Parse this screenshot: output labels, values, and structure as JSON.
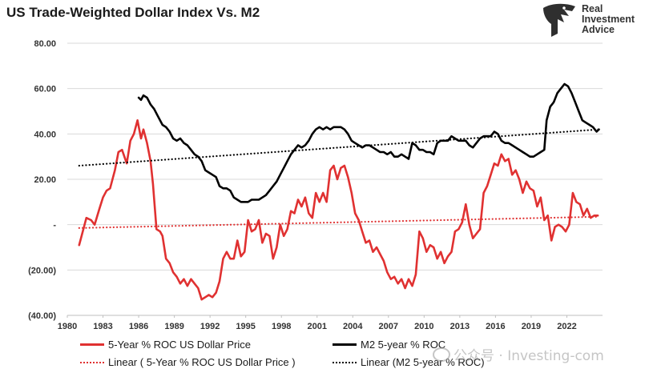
{
  "title": "US Trade-Weighted Dollar Index Vs. M2",
  "logo": {
    "lines": [
      "Real",
      "Investment",
      "Advice"
    ],
    "icon": "eagle-head-icon"
  },
  "watermark": {
    "text": "公众号 · Investing-com",
    "icon": "wechat-icon"
  },
  "colors": {
    "dollar": "#e03131",
    "m2": "#000000",
    "grid": "#d9d9d9"
  },
  "chart_data": {
    "type": "line",
    "title": "US Trade-Weighted Dollar Index Vs. M2",
    "xlim": [
      1980,
      2025
    ],
    "ylim": [
      -40,
      80
    ],
    "grid": "horizontal",
    "legend_position": "bottom",
    "x_ticks": [
      1980,
      1983,
      1986,
      1989,
      1992,
      1995,
      1998,
      2001,
      2004,
      2007,
      2010,
      2013,
      2016,
      2019,
      2022
    ],
    "y_ticks": [
      {
        "value": 80,
        "label": "80.00"
      },
      {
        "value": 60,
        "label": "60.00"
      },
      {
        "value": 40,
        "label": "40.00"
      },
      {
        "value": 20,
        "label": "20.00"
      },
      {
        "value": 0,
        "label": "-"
      },
      {
        "value": -20,
        "label": "(20.00)"
      },
      {
        "value": -40,
        "label": "(40.00)"
      }
    ],
    "series": [
      {
        "name": "5-Year % ROC US Dollar Price",
        "color": "#e03131",
        "style": "solid",
        "points": [
          [
            1981.0,
            -9
          ],
          [
            1981.3,
            -3
          ],
          [
            1981.6,
            3
          ],
          [
            1982.0,
            2
          ],
          [
            1982.3,
            0
          ],
          [
            1982.7,
            7
          ],
          [
            1983.0,
            12
          ],
          [
            1983.3,
            15
          ],
          [
            1983.6,
            16
          ],
          [
            1984.0,
            24
          ],
          [
            1984.3,
            32
          ],
          [
            1984.6,
            33
          ],
          [
            1985.0,
            27
          ],
          [
            1985.3,
            37
          ],
          [
            1985.6,
            40
          ],
          [
            1985.9,
            46
          ],
          [
            1986.2,
            38
          ],
          [
            1986.4,
            42
          ],
          [
            1986.7,
            36
          ],
          [
            1987.0,
            28
          ],
          [
            1987.2,
            18
          ],
          [
            1987.5,
            -2
          ],
          [
            1987.8,
            -3
          ],
          [
            1988.0,
            -5
          ],
          [
            1988.3,
            -15
          ],
          [
            1988.6,
            -17
          ],
          [
            1988.9,
            -21
          ],
          [
            1989.2,
            -23
          ],
          [
            1989.5,
            -26
          ],
          [
            1989.8,
            -24
          ],
          [
            1990.1,
            -27
          ],
          [
            1990.4,
            -24
          ],
          [
            1990.7,
            -26
          ],
          [
            1991.0,
            -28
          ],
          [
            1991.3,
            -33
          ],
          [
            1991.6,
            -32
          ],
          [
            1991.9,
            -31
          ],
          [
            1992.2,
            -32
          ],
          [
            1992.5,
            -30
          ],
          [
            1992.8,
            -25
          ],
          [
            1993.1,
            -15
          ],
          [
            1993.4,
            -12
          ],
          [
            1993.7,
            -15
          ],
          [
            1994.0,
            -15
          ],
          [
            1994.3,
            -7
          ],
          [
            1994.6,
            -14
          ],
          [
            1994.9,
            -12
          ],
          [
            1995.2,
            2
          ],
          [
            1995.5,
            -3
          ],
          [
            1995.8,
            -2
          ],
          [
            1996.1,
            2
          ],
          [
            1996.4,
            -8
          ],
          [
            1996.7,
            -4
          ],
          [
            1997.0,
            -5
          ],
          [
            1997.3,
            -15
          ],
          [
            1997.6,
            -10
          ],
          [
            1997.9,
            0
          ],
          [
            1998.2,
            -5
          ],
          [
            1998.5,
            -2
          ],
          [
            1998.8,
            6
          ],
          [
            1999.1,
            5
          ],
          [
            1999.4,
            11
          ],
          [
            1999.7,
            8
          ],
          [
            2000.0,
            12
          ],
          [
            2000.3,
            5
          ],
          [
            2000.6,
            3
          ],
          [
            2000.9,
            14
          ],
          [
            2001.2,
            10
          ],
          [
            2001.5,
            14
          ],
          [
            2001.8,
            10
          ],
          [
            2002.1,
            24
          ],
          [
            2002.4,
            26
          ],
          [
            2002.7,
            20
          ],
          [
            2003.0,
            25
          ],
          [
            2003.3,
            26
          ],
          [
            2003.6,
            21
          ],
          [
            2003.9,
            14
          ],
          [
            2004.2,
            5
          ],
          [
            2004.5,
            2
          ],
          [
            2004.8,
            -3
          ],
          [
            2005.1,
            -8
          ],
          [
            2005.4,
            -7
          ],
          [
            2005.7,
            -12
          ],
          [
            2006.0,
            -10
          ],
          [
            2006.3,
            -13
          ],
          [
            2006.6,
            -16
          ],
          [
            2006.9,
            -21
          ],
          [
            2007.2,
            -24
          ],
          [
            2007.5,
            -23
          ],
          [
            2007.8,
            -26
          ],
          [
            2008.1,
            -24
          ],
          [
            2008.4,
            -28
          ],
          [
            2008.7,
            -24
          ],
          [
            2009.0,
            -27
          ],
          [
            2009.3,
            -22
          ],
          [
            2009.6,
            -3
          ],
          [
            2009.9,
            -6
          ],
          [
            2010.2,
            -12
          ],
          [
            2010.5,
            -9
          ],
          [
            2010.8,
            -10
          ],
          [
            2011.1,
            -15
          ],
          [
            2011.4,
            -12
          ],
          [
            2011.7,
            -17
          ],
          [
            2012.0,
            -14
          ],
          [
            2012.3,
            -12
          ],
          [
            2012.6,
            -3
          ],
          [
            2012.9,
            -2
          ],
          [
            2013.2,
            1
          ],
          [
            2013.5,
            9
          ],
          [
            2013.8,
            0
          ],
          [
            2014.1,
            -6
          ],
          [
            2014.4,
            -4
          ],
          [
            2014.7,
            -2
          ],
          [
            2015.0,
            14
          ],
          [
            2015.3,
            17
          ],
          [
            2015.6,
            22
          ],
          [
            2015.9,
            27
          ],
          [
            2016.2,
            26
          ],
          [
            2016.5,
            31
          ],
          [
            2016.8,
            28
          ],
          [
            2017.1,
            29
          ],
          [
            2017.4,
            22
          ],
          [
            2017.7,
            24
          ],
          [
            2018.0,
            20
          ],
          [
            2018.3,
            14
          ],
          [
            2018.6,
            19
          ],
          [
            2018.9,
            16
          ],
          [
            2019.2,
            15
          ],
          [
            2019.5,
            8
          ],
          [
            2019.8,
            12
          ],
          [
            2020.1,
            2
          ],
          [
            2020.4,
            4
          ],
          [
            2020.7,
            -7
          ],
          [
            2021.0,
            -1
          ],
          [
            2021.3,
            0
          ],
          [
            2021.6,
            -1
          ],
          [
            2021.9,
            -3
          ],
          [
            2022.2,
            0
          ],
          [
            2022.5,
            14
          ],
          [
            2022.8,
            10
          ],
          [
            2023.1,
            9
          ],
          [
            2023.4,
            4
          ],
          [
            2023.7,
            7
          ],
          [
            2024.0,
            3
          ],
          [
            2024.3,
            4
          ],
          [
            2024.6,
            4
          ]
        ]
      },
      {
        "name": "M2 5-year % ROC",
        "color": "#000000",
        "style": "solid",
        "points": [
          [
            1986.0,
            56
          ],
          [
            1986.2,
            55
          ],
          [
            1986.4,
            57
          ],
          [
            1986.7,
            56
          ],
          [
            1987.0,
            53
          ],
          [
            1987.3,
            51
          ],
          [
            1987.6,
            48
          ],
          [
            1988.0,
            44
          ],
          [
            1988.3,
            43
          ],
          [
            1988.6,
            41
          ],
          [
            1988.9,
            38
          ],
          [
            1989.2,
            37
          ],
          [
            1989.5,
            38
          ],
          [
            1989.8,
            36
          ],
          [
            1990.1,
            35
          ],
          [
            1990.4,
            33
          ],
          [
            1990.7,
            31
          ],
          [
            1991.0,
            30
          ],
          [
            1991.3,
            28
          ],
          [
            1991.6,
            24
          ],
          [
            1991.9,
            23
          ],
          [
            1992.2,
            22
          ],
          [
            1992.5,
            21
          ],
          [
            1992.8,
            17
          ],
          [
            1993.1,
            16
          ],
          [
            1993.4,
            16
          ],
          [
            1993.7,
            15
          ],
          [
            1994.0,
            12
          ],
          [
            1994.3,
            11
          ],
          [
            1994.6,
            10
          ],
          [
            1994.9,
            10
          ],
          [
            1995.2,
            10
          ],
          [
            1995.5,
            11
          ],
          [
            1995.8,
            11
          ],
          [
            1996.1,
            11
          ],
          [
            1996.4,
            12
          ],
          [
            1996.7,
            13
          ],
          [
            1997.0,
            15
          ],
          [
            1997.3,
            17
          ],
          [
            1997.6,
            19
          ],
          [
            1997.9,
            22
          ],
          [
            1998.2,
            25
          ],
          [
            1998.5,
            28
          ],
          [
            1998.8,
            31
          ],
          [
            1999.1,
            33
          ],
          [
            1999.4,
            35
          ],
          [
            1999.7,
            34
          ],
          [
            2000.0,
            35
          ],
          [
            2000.3,
            37
          ],
          [
            2000.6,
            40
          ],
          [
            2000.9,
            42
          ],
          [
            2001.2,
            43
          ],
          [
            2001.5,
            42
          ],
          [
            2001.8,
            43
          ],
          [
            2002.1,
            42
          ],
          [
            2002.4,
            43
          ],
          [
            2002.7,
            43
          ],
          [
            2003.0,
            43
          ],
          [
            2003.3,
            42
          ],
          [
            2003.6,
            40
          ],
          [
            2003.9,
            37
          ],
          [
            2004.2,
            36
          ],
          [
            2004.5,
            35
          ],
          [
            2004.8,
            34
          ],
          [
            2005.1,
            35
          ],
          [
            2005.4,
            35
          ],
          [
            2005.7,
            34
          ],
          [
            2006.0,
            33
          ],
          [
            2006.3,
            32
          ],
          [
            2006.6,
            32
          ],
          [
            2006.9,
            31
          ],
          [
            2007.2,
            32
          ],
          [
            2007.5,
            30
          ],
          [
            2007.8,
            30
          ],
          [
            2008.1,
            31
          ],
          [
            2008.4,
            30
          ],
          [
            2008.7,
            29
          ],
          [
            2009.0,
            36
          ],
          [
            2009.3,
            35
          ],
          [
            2009.6,
            33
          ],
          [
            2009.9,
            33
          ],
          [
            2010.2,
            32
          ],
          [
            2010.5,
            32
          ],
          [
            2010.8,
            31
          ],
          [
            2011.1,
            36
          ],
          [
            2011.4,
            37
          ],
          [
            2011.7,
            37
          ],
          [
            2012.0,
            37
          ],
          [
            2012.3,
            39
          ],
          [
            2012.6,
            38
          ],
          [
            2012.9,
            37
          ],
          [
            2013.2,
            37
          ],
          [
            2013.5,
            37
          ],
          [
            2013.8,
            35
          ],
          [
            2014.1,
            34
          ],
          [
            2014.4,
            36
          ],
          [
            2014.7,
            38
          ],
          [
            2015.0,
            39
          ],
          [
            2015.3,
            39
          ],
          [
            2015.6,
            39
          ],
          [
            2015.9,
            41
          ],
          [
            2016.2,
            40
          ],
          [
            2016.5,
            37
          ],
          [
            2016.8,
            36
          ],
          [
            2017.1,
            36
          ],
          [
            2017.4,
            35
          ],
          [
            2017.7,
            34
          ],
          [
            2018.0,
            33
          ],
          [
            2018.3,
            32
          ],
          [
            2018.6,
            31
          ],
          [
            2018.9,
            30
          ],
          [
            2019.2,
            30
          ],
          [
            2019.5,
            31
          ],
          [
            2019.8,
            32
          ],
          [
            2020.1,
            33
          ],
          [
            2020.3,
            46
          ],
          [
            2020.6,
            52
          ],
          [
            2020.9,
            54
          ],
          [
            2021.2,
            58
          ],
          [
            2021.5,
            60
          ],
          [
            2021.8,
            62
          ],
          [
            2022.1,
            61
          ],
          [
            2022.4,
            58
          ],
          [
            2022.7,
            54
          ],
          [
            2023.0,
            50
          ],
          [
            2023.3,
            46
          ],
          [
            2023.6,
            45
          ],
          [
            2023.9,
            44
          ],
          [
            2024.2,
            43
          ],
          [
            2024.5,
            41
          ],
          [
            2024.7,
            42
          ]
        ]
      },
      {
        "name": "Linear ( 5-Year % ROC US Dollar Price )",
        "color": "#e03131",
        "style": "dotted",
        "points": [
          [
            1981.0,
            -1.5
          ],
          [
            2024.6,
            3.5
          ]
        ]
      },
      {
        "name": "Linear (M2 5-year % ROC)",
        "color": "#000000",
        "style": "dotted",
        "points": [
          [
            1981.0,
            26
          ],
          [
            2024.7,
            42
          ]
        ]
      }
    ]
  }
}
